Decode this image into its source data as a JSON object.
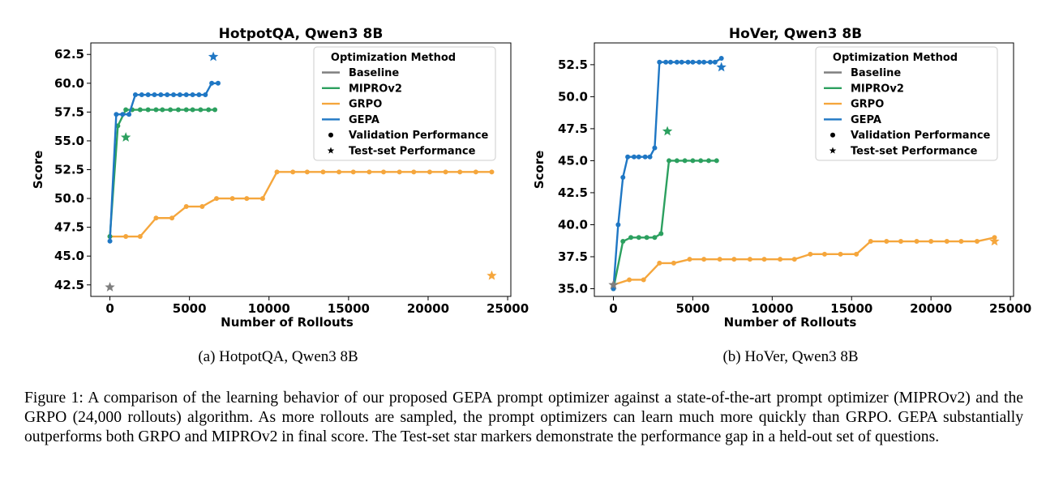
{
  "colors": {
    "baseline": "#7f7f7f",
    "miprov2": "#2ca05f",
    "grpo": "#f5a63c",
    "gepa": "#1f77c4"
  },
  "legend": {
    "title": "Optimization Method",
    "entries": [
      "Baseline",
      "MIPROv2",
      "GRPO",
      "GEPA",
      "Validation Performance",
      "Test-set Performance"
    ]
  },
  "chart_data": [
    {
      "type": "line",
      "title": "HotpotQA, Qwen3 8B",
      "subcaption": "(a) HotpotQA, Qwen3 8B",
      "xlabel": "Number of Rollouts",
      "ylabel": "Score",
      "xlim": [
        -1200,
        25200
      ],
      "ylim": [
        41.5,
        63.5
      ],
      "xticks": [
        0,
        5000,
        10000,
        15000,
        20000,
        25000
      ],
      "xtick_labels": [
        "0",
        "5000",
        "10000",
        "15000",
        "20000",
        "25000"
      ],
      "yticks": [
        42.5,
        45.0,
        47.5,
        50.0,
        52.5,
        55.0,
        57.5,
        60.0,
        62.5
      ],
      "ytick_labels": [
        "42.5",
        "45.0",
        "47.5",
        "50.0",
        "52.5",
        "55.0",
        "57.5",
        "60.0",
        "62.5"
      ],
      "series": [
        {
          "name": "GRPO",
          "color_key": "grpo",
          "x": [
            0,
            1000,
            1900,
            2900,
            3900,
            4800,
            5800,
            6700,
            7700,
            8600,
            9600,
            10500,
            11500,
            12400,
            13400,
            14400,
            15300,
            16300,
            17200,
            18200,
            19100,
            20100,
            21100,
            22000,
            23000,
            24000
          ],
          "y": [
            46.7,
            46.7,
            46.7,
            48.3,
            48.3,
            49.3,
            49.3,
            50.0,
            50.0,
            50.0,
            50.0,
            52.3,
            52.3,
            52.3,
            52.3,
            52.3,
            52.3,
            52.3,
            52.3,
            52.3,
            52.3,
            52.3,
            52.3,
            52.3,
            52.3,
            52.3
          ]
        },
        {
          "name": "MIPROv2",
          "color_key": "miprov2",
          "x": [
            0,
            500,
            1000,
            1400,
            1900,
            2400,
            2900,
            3300,
            3800,
            4300,
            4800,
            5200,
            5700,
            6200,
            6600
          ],
          "y": [
            46.7,
            56.3,
            57.7,
            57.7,
            57.7,
            57.7,
            57.7,
            57.7,
            57.7,
            57.7,
            57.7,
            57.7,
            57.7,
            57.7,
            57.7
          ]
        },
        {
          "name": "GEPA",
          "color_key": "gepa",
          "x": [
            0,
            400,
            800,
            1200,
            1600,
            2000,
            2400,
            2800,
            3200,
            3600,
            4000,
            4400,
            4800,
            5200,
            5600,
            6000,
            6400,
            6800
          ],
          "y": [
            46.3,
            57.3,
            57.3,
            57.3,
            59.0,
            59.0,
            59.0,
            59.0,
            59.0,
            59.0,
            59.0,
            59.0,
            59.0,
            59.0,
            59.0,
            59.0,
            60.0,
            60.0
          ]
        }
      ],
      "test_points": [
        {
          "name": "Baseline",
          "color_key": "baseline",
          "x": 0,
          "y": 42.3
        },
        {
          "name": "MIPROv2",
          "color_key": "miprov2",
          "x": 1000,
          "y": 55.3
        },
        {
          "name": "GRPO",
          "color_key": "grpo",
          "x": 24000,
          "y": 43.3
        },
        {
          "name": "GEPA",
          "color_key": "gepa",
          "x": 6500,
          "y": 62.3
        }
      ]
    },
    {
      "type": "line",
      "title": "HoVer, Qwen3 8B",
      "subcaption": "(b) HoVer, Qwen3 8B",
      "xlabel": "Number of Rollouts",
      "ylabel": "Score",
      "xlim": [
        -1200,
        25200
      ],
      "ylim": [
        34.4,
        54.2
      ],
      "xticks": [
        0,
        5000,
        10000,
        15000,
        20000,
        25000
      ],
      "xtick_labels": [
        "0",
        "5000",
        "10000",
        "15000",
        "20000",
        "25000"
      ],
      "yticks": [
        35.0,
        37.5,
        40.0,
        42.5,
        45.0,
        47.5,
        50.0,
        52.5
      ],
      "ytick_labels": [
        "35.0",
        "37.5",
        "40.0",
        "42.5",
        "45.0",
        "47.5",
        "50.0",
        "52.5"
      ],
      "series": [
        {
          "name": "GRPO",
          "color_key": "grpo",
          "x": [
            0,
            1000,
            1900,
            2900,
            3800,
            4800,
            5700,
            6700,
            7600,
            8600,
            9500,
            10500,
            11400,
            12400,
            13300,
            14300,
            15300,
            16200,
            17200,
            18100,
            19100,
            20000,
            21000,
            21900,
            22900,
            24000
          ],
          "y": [
            35.3,
            35.7,
            35.7,
            37.0,
            37.0,
            37.3,
            37.3,
            37.3,
            37.3,
            37.3,
            37.3,
            37.3,
            37.3,
            37.7,
            37.7,
            37.7,
            37.7,
            38.7,
            38.7,
            38.7,
            38.7,
            38.7,
            38.7,
            38.7,
            38.7,
            39.0
          ]
        },
        {
          "name": "MIPROv2",
          "color_key": "miprov2",
          "x": [
            0,
            600,
            1100,
            1600,
            2100,
            2600,
            3000,
            3500,
            4000,
            4500,
            5000,
            5500,
            6000,
            6500
          ],
          "y": [
            35.0,
            38.7,
            39.0,
            39.0,
            39.0,
            39.0,
            39.3,
            45.0,
            45.0,
            45.0,
            45.0,
            45.0,
            45.0,
            45.0
          ]
        },
        {
          "name": "GEPA",
          "color_key": "gepa",
          "x": [
            0,
            300,
            600,
            900,
            1300,
            1600,
            2000,
            2300,
            2600,
            2900,
            3300,
            3600,
            4000,
            4300,
            4700,
            5000,
            5400,
            5700,
            6100,
            6400,
            6800
          ],
          "y": [
            35.0,
            40.0,
            43.7,
            45.3,
            45.3,
            45.3,
            45.3,
            45.3,
            46.0,
            52.7,
            52.7,
            52.7,
            52.7,
            52.7,
            52.7,
            52.7,
            52.7,
            52.7,
            52.7,
            52.7,
            53.0
          ]
        }
      ],
      "test_points": [
        {
          "name": "Baseline",
          "color_key": "baseline",
          "x": 0,
          "y": 35.3
        },
        {
          "name": "MIPROv2",
          "color_key": "miprov2",
          "x": 3400,
          "y": 47.3
        },
        {
          "name": "GRPO",
          "color_key": "grpo",
          "x": 24000,
          "y": 38.7
        },
        {
          "name": "GEPA",
          "color_key": "gepa",
          "x": 6800,
          "y": 52.3
        }
      ]
    }
  ],
  "caption": "Figure 1: A comparison of the learning behavior of our proposed GEPA prompt optimizer against a state-of-the-art prompt optimizer (MIPROv2) and the GRPO (24,000 rollouts) algorithm. As more rollouts are sampled, the prompt optimizers can learn much more quickly than GRPO. GEPA substantially outperforms both GRPO and MIPROv2 in final score. The Test-set star markers demonstrate the performance gap in a held-out set of questions."
}
